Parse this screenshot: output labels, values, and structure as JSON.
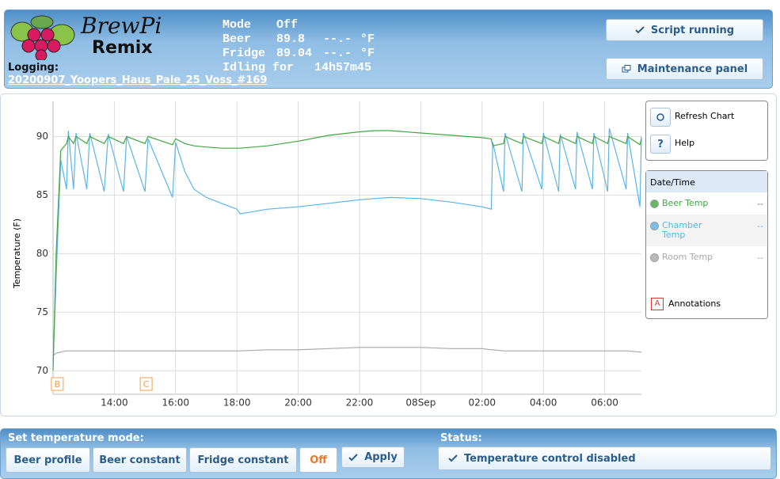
{
  "header": {
    "logo_top": "BrewPi",
    "logo_bottom": "Remix",
    "mode_label": "Mode",
    "mode_value": "Off",
    "beer_label": "Beer",
    "beer_value": "89.8",
    "beer_setting": "--.-",
    "beer_unit": "°F",
    "fridge_label": "Fridge",
    "fridge_value": "89.04",
    "fridge_setting": "--.-",
    "fridge_unit": "°F",
    "state_label": "Idling for",
    "state_time": "14h57m45",
    "logging_label": "Logging:",
    "logging_file": "20200907_Yoopers_Haus_Pale_25_Voss_#169",
    "script_button": "Script running",
    "maintenance_button": "Maintenance panel"
  },
  "chart_panel": {
    "refresh": "Refresh Chart",
    "help_icon": "?",
    "help": "Help",
    "legend_title": "Date/Time",
    "annotations_icon": "A",
    "annotations": "Annotations"
  },
  "chart_data": {
    "type": "line",
    "y_label": "Temperature (F)",
    "xlim": [
      12.0,
      31.2
    ],
    "xticks": [
      {
        "value": 14,
        "label": "14:00"
      },
      {
        "value": 16,
        "label": "16:00"
      },
      {
        "value": 18,
        "label": "18:00"
      },
      {
        "value": 20,
        "label": "20:00"
      },
      {
        "value": 22,
        "label": "22:00"
      },
      {
        "value": 24,
        "label": "08Sep"
      },
      {
        "value": 26,
        "label": "02:00"
      },
      {
        "value": 28,
        "label": "04:00"
      },
      {
        "value": 30,
        "label": "06:00"
      }
    ],
    "ylim": [
      68,
      93
    ],
    "yticks": [
      70,
      75,
      80,
      85,
      90
    ],
    "grid": true,
    "x": [
      12.0,
      12.1,
      12.25,
      12.44,
      12.5,
      12.67,
      12.75,
      13.1,
      13.2,
      13.67,
      13.8,
      14.3,
      14.4,
      15.0,
      15.1,
      15.9,
      16.0,
      16.3,
      16.6,
      17.0,
      17.5,
      18.0,
      18.1,
      19.0,
      20.0,
      21.0,
      22.0,
      22.5,
      23.0,
      24.0,
      25.0,
      26.0,
      26.3,
      26.35,
      26.7,
      26.75,
      27.3,
      27.35,
      27.95,
      28.0,
      28.5,
      28.55,
      29.05,
      29.1,
      29.6,
      29.65,
      30.1,
      30.15,
      30.7,
      30.75,
      31.15,
      31.2
    ],
    "series": [
      {
        "name": "Beer Temp",
        "color": "#41a741",
        "current": "--",
        "values": [
          70,
          80,
          88.8,
          89.4,
          90.0,
          89.4,
          90.0,
          89.4,
          90.0,
          89.4,
          90.0,
          89.4,
          90.0,
          89.4,
          90.0,
          89.3,
          89.8,
          89.4,
          89.2,
          89.1,
          89.0,
          89.0,
          89.0,
          89.2,
          89.6,
          90.1,
          90.4,
          90.5,
          90.5,
          90.3,
          90.1,
          89.9,
          89.8,
          89.2,
          89.4,
          90.0,
          89.4,
          90.0,
          89.4,
          90.0,
          89.4,
          90.0,
          89.4,
          90.0,
          89.4,
          90.0,
          89.4,
          90.0,
          89.4,
          90.0,
          89.3,
          89.8
        ]
      },
      {
        "name": "Chamber Temp",
        "color": "#5ab4e8",
        "current": "--",
        "values": [
          70.5,
          78,
          88,
          85.5,
          90.5,
          85.5,
          90.3,
          85.5,
          90.3,
          85.3,
          90.2,
          85.3,
          90.0,
          85.3,
          89.8,
          84.8,
          89.5,
          87,
          85.5,
          84.8,
          84.3,
          83.8,
          83.4,
          83.8,
          84.0,
          84.3,
          84.6,
          84.7,
          84.8,
          84.7,
          84.4,
          84.0,
          83.8,
          89.5,
          85.3,
          90.3,
          85.3,
          90.3,
          85.5,
          90.3,
          85.3,
          90.2,
          85.5,
          90.4,
          85.5,
          90.3,
          85.3,
          90.7,
          85.5,
          90.3,
          84.0,
          90.0
        ]
      },
      {
        "name": "Room Temp",
        "color": "#a8a8a8",
        "current": "--",
        "values": [
          71.3,
          71.5,
          71.6,
          71.7,
          71.7,
          71.7,
          71.7,
          71.7,
          71.7,
          71.7,
          71.7,
          71.7,
          71.7,
          71.7,
          71.7,
          71.7,
          71.7,
          71.7,
          71.7,
          71.7,
          71.7,
          71.7,
          71.7,
          71.8,
          71.8,
          71.9,
          72.0,
          72.0,
          72.0,
          72.0,
          71.9,
          71.9,
          71.8,
          71.8,
          71.7,
          71.7,
          71.7,
          71.7,
          71.7,
          71.7,
          71.7,
          71.7,
          71.7,
          71.7,
          71.7,
          71.7,
          71.7,
          71.7,
          71.7,
          71.7,
          71.6,
          71.6
        ]
      }
    ],
    "annotations": [
      {
        "label": "B",
        "x": 12.1
      },
      {
        "label": "C",
        "x": 15.0
      }
    ]
  },
  "control": {
    "mode_title": "Set temperature mode:",
    "beer_profile": "Beer profile",
    "beer_constant": "Beer constant",
    "fridge_constant": "Fridge constant",
    "off": "Off",
    "apply": "Apply",
    "status_title": "Status:",
    "status": "Temperature control disabled"
  }
}
